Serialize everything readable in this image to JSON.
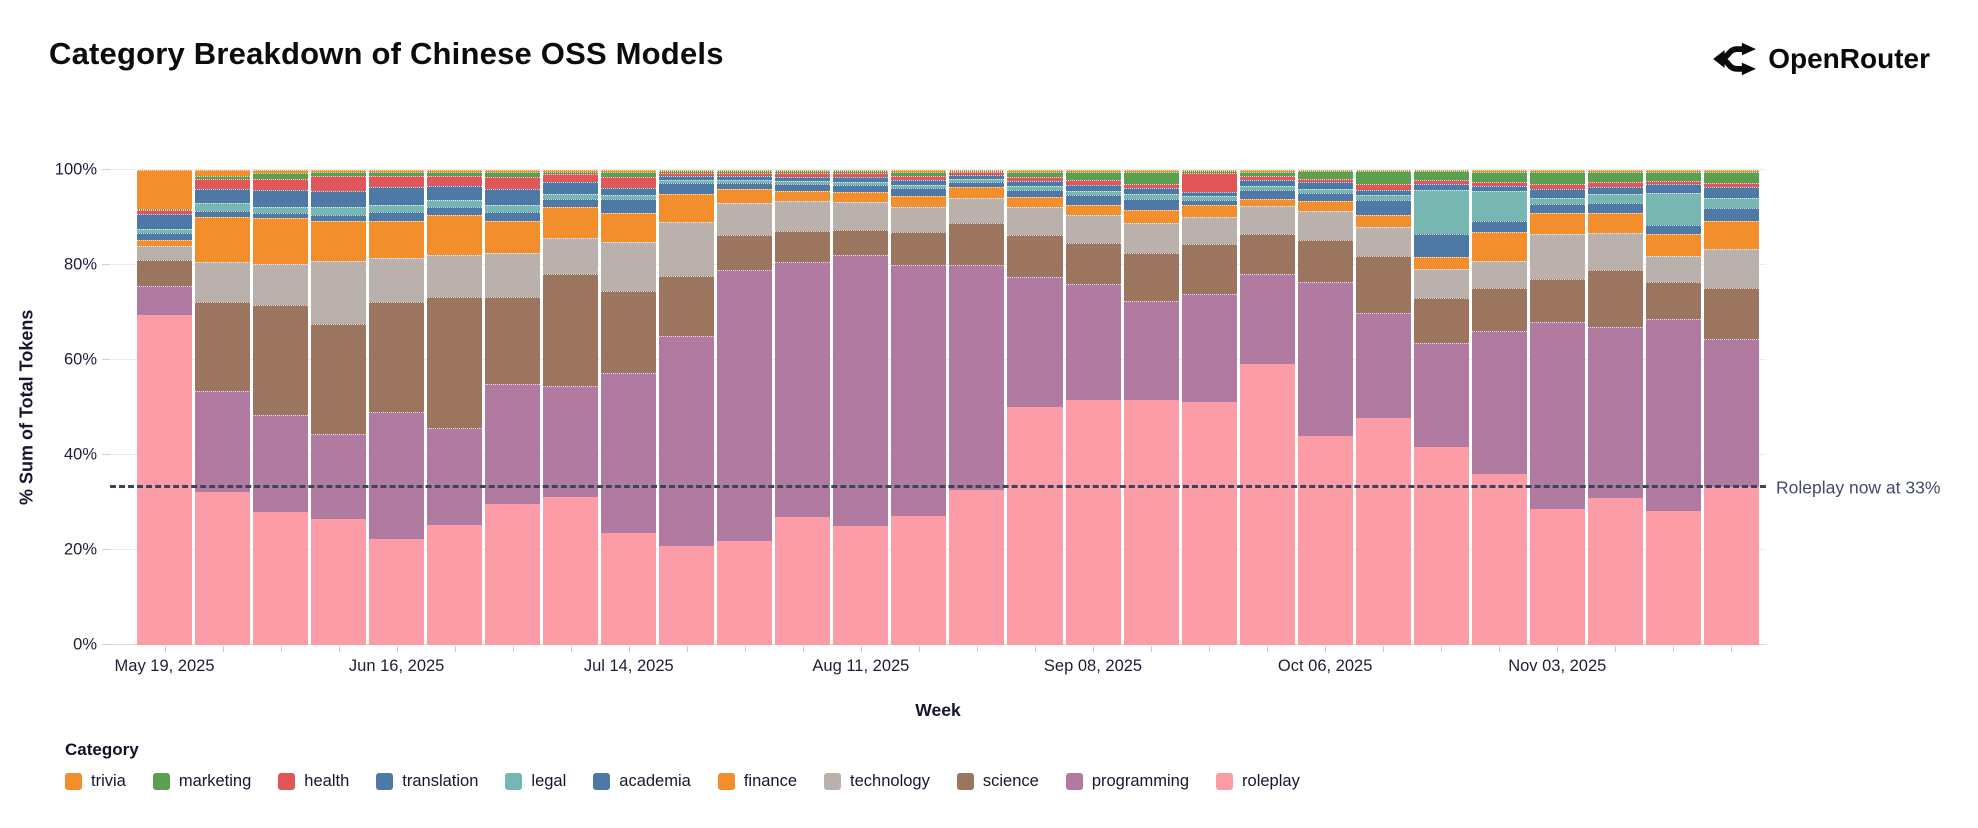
{
  "header": {
    "title": "Category Breakdown of Chinese OSS Models",
    "brand": "OpenRouter"
  },
  "legend": {
    "title": "Category",
    "items": [
      "trivia",
      "marketing",
      "health",
      "translation",
      "legal",
      "academia",
      "finance",
      "technology",
      "science",
      "programming",
      "roleplay"
    ]
  },
  "chart_data": {
    "type": "bar",
    "variant": "stacked-percent",
    "title": "Category Breakdown of Chinese OSS Models",
    "xlabel": "Week",
    "ylabel": "% Sum of Total Tokens",
    "ylim": [
      0,
      100
    ],
    "y_ticks": [
      "0%",
      "20%",
      "40%",
      "60%",
      "80%",
      "100%"
    ],
    "num_weeks": 28,
    "x_ticks": [
      {
        "index": 0,
        "label": "May 19, 2025"
      },
      {
        "index": 4,
        "label": "Jun 16, 2025"
      },
      {
        "index": 8,
        "label": "Jul 14, 2025"
      },
      {
        "index": 12,
        "label": "Aug 11, 2025"
      },
      {
        "index": 16,
        "label": "Sep 08, 2025"
      },
      {
        "index": 20,
        "label": "Oct 06, 2025"
      },
      {
        "index": 24,
        "label": "Nov 03, 2025"
      }
    ],
    "colors": {
      "trivia": "#f28e2b",
      "marketing": "#59a14f",
      "health": "#e15759",
      "translation": "#4e79a7",
      "legal": "#76b7b2",
      "academia": "#4e79a7",
      "finance": "#f28e2b",
      "technology": "#bab0ac",
      "science": "#9c755f",
      "programming": "#b07aa1",
      "roleplay": "#fc9ca7"
    },
    "stack_order_bottom_to_top": [
      "roleplay",
      "programming",
      "science",
      "technology",
      "finance",
      "academia",
      "legal",
      "translation",
      "health",
      "marketing",
      "trivia"
    ],
    "series": [
      {
        "name": "roleplay",
        "values": [
          69.5,
          32.3,
          28.0,
          26.3,
          22.3,
          25.3,
          29.7,
          31.1,
          23.5,
          21.0,
          22.0,
          27.0,
          25.0,
          27.2,
          32.6,
          50.2,
          51.5,
          51.5,
          51.0,
          59.0,
          44.0,
          47.5,
          41.5,
          36.0,
          28.3,
          30.8,
          28.0,
          33.0
        ]
      },
      {
        "name": "programming",
        "values": [
          6.0,
          21.2,
          20.5,
          17.7,
          26.7,
          20.4,
          25.3,
          23.4,
          33.5,
          44.4,
          57.3,
          53.5,
          57.0,
          52.9,
          47.4,
          27.3,
          24.6,
          21.0,
          22.5,
          18.8,
          32.5,
          22.0,
          22.0,
          30.0,
          39.0,
          35.8,
          40.0,
          31.0
        ]
      },
      {
        "name": "science",
        "values": [
          5.5,
          18.8,
          23.0,
          23.0,
          23.3,
          27.6,
          18.3,
          23.5,
          17.2,
          12.8,
          7.3,
          6.5,
          5.3,
          7.1,
          8.9,
          8.8,
          8.5,
          10.0,
          10.5,
          8.5,
          8.7,
          12.0,
          9.5,
          9.1,
          9.0,
          12.0,
          7.7,
          10.7
        ]
      },
      {
        "name": "technology",
        "values": [
          3.0,
          8.4,
          8.7,
          13.0,
          9.1,
          8.8,
          9.2,
          7.7,
          10.3,
          11.4,
          6.8,
          6.2,
          5.9,
          5.3,
          5.3,
          6.0,
          5.9,
          6.3,
          5.6,
          5.8,
          6.1,
          6.0,
          6.1,
          5.6,
          9.3,
          7.7,
          5.4,
          8.1
        ]
      },
      {
        "name": "finance",
        "values": [
          1.2,
          9.5,
          9.7,
          8.4,
          7.9,
          8.4,
          6.7,
          6.5,
          5.9,
          6.0,
          2.9,
          2.3,
          2.0,
          2.3,
          2.3,
          2.1,
          2.2,
          2.8,
          2.5,
          1.5,
          2.1,
          2.6,
          2.4,
          6.0,
          4.4,
          4.4,
          4.6,
          5.8
        ]
      },
      {
        "name": "academia",
        "values": [
          1.6,
          1.2,
          1.0,
          1.3,
          1.8,
          1.7,
          1.9,
          1.6,
          3.0,
          2.2,
          1.3,
          1.4,
          1.5,
          1.6,
          1.0,
          1.5,
          2.1,
          2.4,
          1.2,
          2.0,
          1.8,
          3.2,
          4.9,
          2.4,
          1.9,
          2.0,
          1.9,
          2.8
        ]
      },
      {
        "name": "legal",
        "values": [
          0.7,
          1.6,
          1.3,
          1.5,
          1.5,
          1.4,
          1.5,
          1.0,
          0.8,
          0.7,
          0.7,
          0.6,
          0.7,
          0.7,
          0.6,
          0.8,
          0.7,
          1.0,
          0.7,
          0.8,
          0.9,
          0.9,
          9.2,
          6.3,
          1.3,
          1.8,
          6.8,
          2.0
        ]
      },
      {
        "name": "translation",
        "values": [
          3.3,
          3.0,
          3.6,
          3.5,
          3.9,
          3.0,
          3.4,
          2.5,
          1.5,
          0.9,
          0.8,
          0.9,
          1.1,
          1.0,
          0.8,
          1.0,
          1.4,
          1.2,
          0.9,
          1.2,
          1.3,
          1.2,
          1.3,
          1.0,
          1.9,
          1.6,
          1.8,
          2.4
        ]
      },
      {
        "name": "health",
        "values": [
          0.8,
          2.1,
          2.4,
          3.0,
          2.3,
          2.2,
          2.5,
          1.7,
          2.4,
          0.6,
          0.7,
          0.7,
          0.7,
          0.9,
          0.6,
          0.8,
          1.1,
          0.8,
          3.9,
          0.8,
          0.8,
          1.1,
          0.9,
          0.9,
          1.1,
          0.9,
          0.7,
          0.8
        ]
      },
      {
        "name": "marketing",
        "values": [
          0.2,
          0.7,
          1.1,
          0.8,
          0.7,
          0.7,
          1.0,
          0.6,
          1.1,
          0.4,
          0.4,
          0.5,
          0.5,
          0.7,
          0.3,
          1.0,
          1.5,
          2.5,
          0.5,
          1.0,
          1.5,
          2.8,
          1.8,
          2.2,
          2.5,
          2.3,
          1.9,
          2.2
        ]
      },
      {
        "name": "trivia",
        "values": [
          8.2,
          1.2,
          0.7,
          0.5,
          0.5,
          0.5,
          0.5,
          0.3,
          0.3,
          0.2,
          0.2,
          0.2,
          0.2,
          0.5,
          0.2,
          0.5,
          0.5,
          0.5,
          0.2,
          0.3,
          0.3,
          0.2,
          0.2,
          0.3,
          0.3,
          0.3,
          0.3,
          0.5
        ]
      }
    ],
    "grid": true,
    "legend_position": "bottom",
    "annotation": {
      "text": "Roleplay now at 33%",
      "y_percent": 33,
      "line_style": "dashed"
    }
  }
}
